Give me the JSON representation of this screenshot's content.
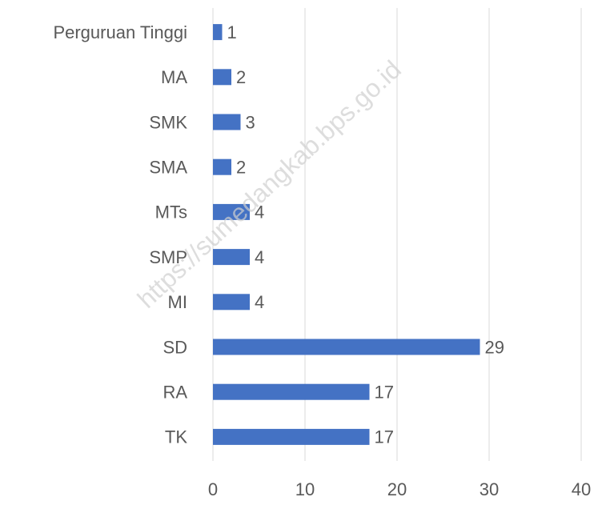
{
  "chart_data": {
    "type": "hbar",
    "categories": [
      "Perguruan Tinggi",
      "MA",
      "SMK",
      "SMA",
      "MTs",
      "SMP",
      "MI",
      "SD",
      "RA",
      "TK"
    ],
    "values": [
      1,
      2,
      3,
      2,
      4,
      4,
      4,
      29,
      17,
      17
    ],
    "color": "#4472c4",
    "xlim": [
      0,
      40
    ],
    "xticks": [
      0,
      10,
      20,
      30,
      40
    ],
    "grid": true,
    "watermark": "https://sumedangkab.bps.go.id"
  }
}
